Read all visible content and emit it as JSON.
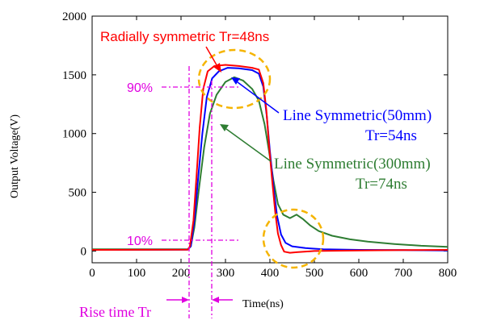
{
  "chart_data": {
    "type": "line",
    "xlabel": "Time(ns)",
    "ylabel": "Output Voltage(V)",
    "xlim": [
      0,
      800
    ],
    "ylim": [
      -100,
      2000
    ],
    "x_ticks": [
      0,
      100,
      200,
      300,
      400,
      500,
      600,
      700,
      800
    ],
    "y_ticks": [
      0,
      500,
      1000,
      1500,
      2000
    ],
    "grid": false,
    "series": [
      {
        "name": "Radially symmetric",
        "color": "#ff0000",
        "points": [
          [
            0,
            10
          ],
          [
            215,
            12
          ],
          [
            220,
            40
          ],
          [
            228,
            260
          ],
          [
            235,
            650
          ],
          [
            242,
            1050
          ],
          [
            250,
            1380
          ],
          [
            260,
            1530
          ],
          [
            275,
            1575
          ],
          [
            300,
            1585
          ],
          [
            330,
            1575
          ],
          [
            360,
            1560
          ],
          [
            375,
            1545
          ],
          [
            385,
            1430
          ],
          [
            392,
            1200
          ],
          [
            398,
            900
          ],
          [
            405,
            600
          ],
          [
            412,
            330
          ],
          [
            418,
            150
          ],
          [
            425,
            50
          ],
          [
            432,
            -5
          ],
          [
            445,
            -15
          ],
          [
            460,
            -10
          ],
          [
            500,
            0
          ],
          [
            600,
            5
          ],
          [
            700,
            8
          ],
          [
            800,
            10
          ]
        ]
      },
      {
        "name": "Line Symmetric(50mm)",
        "color": "#0000ff",
        "points": [
          [
            0,
            10
          ],
          [
            215,
            12
          ],
          [
            222,
            40
          ],
          [
            230,
            260
          ],
          [
            238,
            600
          ],
          [
            248,
            1000
          ],
          [
            258,
            1310
          ],
          [
            270,
            1470
          ],
          [
            285,
            1530
          ],
          [
            305,
            1560
          ],
          [
            330,
            1555
          ],
          [
            360,
            1540
          ],
          [
            375,
            1510
          ],
          [
            385,
            1400
          ],
          [
            393,
            1150
          ],
          [
            400,
            850
          ],
          [
            408,
            550
          ],
          [
            416,
            300
          ],
          [
            425,
            140
          ],
          [
            435,
            70
          ],
          [
            450,
            40
          ],
          [
            480,
            25
          ],
          [
            520,
            15
          ],
          [
            600,
            10
          ],
          [
            700,
            8
          ],
          [
            800,
            5
          ]
        ]
      },
      {
        "name": "Line Symmetric(300mm)",
        "color": "#2e7d32",
        "points": [
          [
            0,
            15
          ],
          [
            215,
            15
          ],
          [
            222,
            40
          ],
          [
            230,
            200
          ],
          [
            240,
            520
          ],
          [
            252,
            880
          ],
          [
            265,
            1170
          ],
          [
            280,
            1330
          ],
          [
            300,
            1440
          ],
          [
            320,
            1480
          ],
          [
            340,
            1450
          ],
          [
            360,
            1380
          ],
          [
            375,
            1280
          ],
          [
            388,
            1080
          ],
          [
            398,
            850
          ],
          [
            408,
            600
          ],
          [
            418,
            400
          ],
          [
            430,
            310
          ],
          [
            445,
            280
          ],
          [
            460,
            310
          ],
          [
            475,
            270
          ],
          [
            490,
            220
          ],
          [
            510,
            170
          ],
          [
            540,
            130
          ],
          [
            580,
            100
          ],
          [
            620,
            80
          ],
          [
            680,
            60
          ],
          [
            740,
            45
          ],
          [
            800,
            35
          ]
        ]
      }
    ],
    "annotations": {
      "radially": "Radially symmetric Tr=48ns",
      "line50_1": "Line Symmetric(50mm)",
      "line50_2": "Tr=54ns",
      "line300_1": "Line Symmetric(300mm)",
      "line300_2": "Tr=74ns",
      "ninety": "90%",
      "ten": "10%",
      "rise_time": "Rise time Tr"
    }
  }
}
